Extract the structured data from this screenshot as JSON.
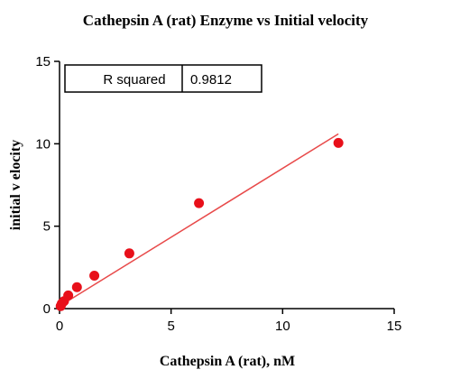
{
  "chart_data": {
    "type": "scatter",
    "title": "Cathepsin A (rat)  Enzyme vs Initial velocity",
    "xlabel": "Cathepsin A (rat), nM",
    "ylabel": "initial v elocity",
    "xlim": [
      0,
      15
    ],
    "ylim": [
      0,
      15
    ],
    "x_ticks": [
      "0",
      "5",
      "10",
      "15"
    ],
    "y_ticks": [
      "0",
      "5",
      "10",
      "15"
    ],
    "grid": false,
    "points": [
      {
        "x": 0.05,
        "y": 0.15
      },
      {
        "x": 0.1,
        "y": 0.3
      },
      {
        "x": 0.2,
        "y": 0.45
      },
      {
        "x": 0.39,
        "y": 0.8
      },
      {
        "x": 0.78,
        "y": 1.3
      },
      {
        "x": 1.56,
        "y": 2.0
      },
      {
        "x": 3.13,
        "y": 3.35
      },
      {
        "x": 6.25,
        "y": 6.4
      },
      {
        "x": 12.5,
        "y": 10.05
      }
    ],
    "fit_line": {
      "x": [
        0,
        12.5
      ],
      "y": [
        0.15,
        10.6
      ]
    },
    "point_color": "#e8101a",
    "line_color": "#e84a4a",
    "stat_table": {
      "label": "R squared",
      "value": "0.9812"
    }
  }
}
